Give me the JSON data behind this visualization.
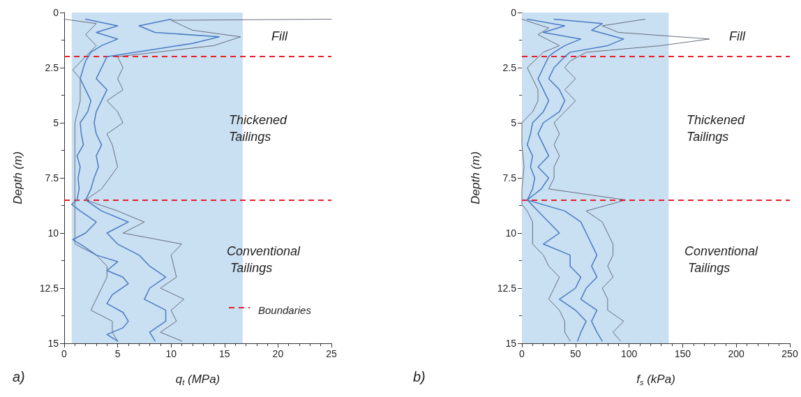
{
  "chart_data": [
    {
      "type": "line",
      "xlabel": "q$_{t}$ (MPa)",
      "ylabel": "Depth (m)",
      "xlim": [
        0,
        25
      ],
      "xticks": [
        0,
        5,
        10,
        15,
        20,
        25
      ],
      "ylim": [
        15,
        0
      ],
      "yticks": [
        0,
        2.5,
        5,
        7.5,
        10,
        12.5,
        15
      ],
      "grid": false,
      "marker": "none",
      "line_style": "solid",
      "legend": "bottom right",
      "annotations": [
        "Fill",
        "Thickened Tailings",
        "Conventional Tailings",
        "a)"
      ],
      "bands": [
        {
          "axis": "x",
          "from": 0.7,
          "to": 16.7,
          "color": "#c9dff2"
        }
      ],
      "ref_lines": [
        {
          "axis": "y",
          "value": 2,
          "label": "Boundaries",
          "color": "#e8202a",
          "line_style": "dashed"
        },
        {
          "axis": "y",
          "value": 8.5,
          "color": "#e8202a",
          "line_style": "dashed"
        }
      ],
      "series": [
        {
          "color": "#5a6270",
          "x": [
            25,
            10,
            12,
            16.5,
            14,
            5,
            5.5,
            5,
            5.5,
            4,
            5,
            5.5,
            4,
            4.5,
            5,
            3.5,
            2,
            5,
            7.5,
            5.5,
            11,
            10,
            10.5,
            9,
            11.2,
            10,
            10.5,
            9,
            11
          ],
          "values": [
            0.3,
            0.35,
            0.8,
            1.1,
            1.5,
            2,
            2.5,
            3,
            3.5,
            4,
            4.5,
            5,
            5.5,
            6,
            7,
            8,
            8.5,
            9,
            9.5,
            10,
            10.5,
            11,
            12,
            12.5,
            13,
            13.5,
            14,
            14.5,
            14.9
          ]
        },
        {
          "color": "#5a6270",
          "x": [
            0,
            3,
            2,
            3,
            2,
            0.8,
            1.5,
            1.5,
            1,
            1,
            1,
            1,
            1,
            1,
            1,
            1,
            3,
            4,
            4,
            3,
            2.5,
            4.5,
            4.5,
            5
          ],
          "values": [
            0.3,
            0.5,
            1,
            1.5,
            2,
            2.6,
            3,
            4,
            5,
            6,
            7,
            8,
            8.7,
            9,
            10,
            10.5,
            11,
            11.5,
            12,
            13,
            13.5,
            14,
            14.5,
            14.9
          ]
        },
        {
          "color": "#4a7cc4",
          "x": [
            2,
            5,
            3,
            5,
            3.5,
            2.5,
            2,
            1.8,
            1.5,
            2,
            2.5,
            2.2,
            1.5,
            1.6,
            1.8,
            1.2,
            1.5,
            1.3,
            1.4,
            1.2,
            0.7,
            1.5,
            3,
            2,
            0.8,
            1.8,
            3,
            5,
            4,
            5.5,
            6,
            4.5,
            4,
            5.5,
            6,
            5.5,
            4,
            5
          ],
          "values": [
            0.3,
            0.6,
            0.9,
            1.2,
            1.5,
            1.8,
            2.2,
            2.5,
            3,
            3.5,
            4,
            4.5,
            5,
            5.5,
            6,
            6.5,
            7,
            7.5,
            8,
            8.5,
            8.7,
            9,
            9.5,
            10,
            10.3,
            10.6,
            11,
            11.3,
            11.7,
            12,
            12.3,
            12.8,
            13.2,
            13.6,
            14,
            14.3,
            14.6,
            14.9
          ]
        },
        {
          "color": "#4a7cc4",
          "x": [
            10,
            7,
            8.5,
            14.5,
            12,
            8,
            4,
            3.5,
            3,
            4,
            3.5,
            3,
            2.8,
            3,
            3.5,
            3,
            3.2,
            2.8,
            2.5,
            2,
            3.5,
            6,
            4,
            5,
            7,
            8,
            9.5,
            8,
            7.5,
            9.5,
            9.5,
            8,
            8.5
          ],
          "values": [
            0.3,
            0.6,
            0.9,
            1.1,
            1.4,
            1.7,
            2,
            2.5,
            3,
            3.5,
            4,
            4.5,
            5,
            5.5,
            6,
            6.5,
            7,
            7.5,
            8,
            8.5,
            9,
            9.5,
            10,
            10.5,
            11,
            11.5,
            12,
            12.5,
            13,
            13.5,
            14,
            14.5,
            14.9
          ]
        }
      ]
    },
    {
      "type": "line",
      "xlabel": "f$_{s}$ (kPa)",
      "ylabel": "Depth (m)",
      "xlim": [
        0,
        250
      ],
      "xticks": [
        0,
        50,
        100,
        150,
        200,
        250
      ],
      "ylim": [
        15,
        0
      ],
      "yticks": [
        0,
        2.5,
        5,
        7.5,
        10,
        12.5,
        15
      ],
      "grid": false,
      "marker": "none",
      "line_style": "solid",
      "annotations": [
        "Fill",
        "Thickened Tailings",
        "Conventional Tailings",
        "b)"
      ],
      "bands": [
        {
          "axis": "x",
          "from": 0,
          "to": 137,
          "color": "#c9dff2"
        }
      ],
      "ref_lines": [
        {
          "axis": "y",
          "value": 2,
          "color": "#e8202a",
          "line_style": "dashed"
        },
        {
          "axis": "y",
          "value": 8.5,
          "color": "#e8202a",
          "line_style": "dashed"
        }
      ],
      "series": [
        {
          "color": "#5a6270",
          "x": [
            115,
            75,
            90,
            175,
            130,
            60,
            45,
            40,
            50,
            40,
            50,
            40,
            30,
            35,
            30,
            35,
            30,
            30,
            25,
            97,
            60,
            75,
            80,
            85,
            85,
            80,
            85,
            75,
            80,
            80,
            95,
            85,
            92
          ],
          "values": [
            0.3,
            0.6,
            0.9,
            1.2,
            1.5,
            1.8,
            2.2,
            2.5,
            3,
            3.5,
            4,
            4.5,
            5,
            5.5,
            6,
            6.5,
            7,
            7.5,
            8,
            8.5,
            9,
            9.5,
            10,
            10.5,
            11,
            11.5,
            12,
            12.5,
            13,
            13.5,
            14,
            14.5,
            14.9
          ]
        },
        {
          "color": "#5a6270",
          "x": [
            0,
            25,
            15,
            35,
            20,
            5,
            10,
            15,
            15,
            10,
            0,
            0,
            2,
            0,
            0,
            5,
            10,
            10,
            10,
            20,
            25,
            35,
            30,
            25,
            35,
            40,
            40,
            45
          ],
          "values": [
            0.3,
            0.7,
            1,
            1.5,
            1.8,
            2.5,
            3,
            3.5,
            4,
            4.5,
            5,
            6,
            7,
            8,
            8.7,
            9,
            9.5,
            10,
            10.5,
            11,
            11.5,
            12,
            12.5,
            13,
            13.5,
            14,
            14.5,
            14.9
          ]
        },
        {
          "color": "#4a7cc4",
          "x": [
            5,
            40,
            20,
            55,
            40,
            30,
            25,
            20,
            15,
            20,
            25,
            20,
            10,
            8,
            5,
            10,
            8,
            12,
            10,
            5,
            15,
            25,
            35,
            20,
            45,
            45,
            55,
            50,
            35,
            50,
            60,
            55,
            52
          ],
          "values": [
            0.3,
            0.6,
            0.9,
            1.2,
            1.5,
            1.8,
            2,
            2.5,
            3,
            3.5,
            4,
            4.5,
            5,
            5.5,
            6,
            6.5,
            7,
            7.5,
            8,
            8.5,
            9,
            9.5,
            10,
            10.5,
            11,
            11.5,
            12,
            12.5,
            13,
            13.5,
            14,
            14.5,
            14.9
          ]
        },
        {
          "color": "#4a7cc4",
          "x": [
            30,
            75,
            65,
            95,
            80,
            45,
            40,
            30,
            25,
            35,
            40,
            35,
            20,
            15,
            20,
            25,
            15,
            25,
            18,
            5,
            40,
            55,
            60,
            65,
            70,
            65,
            70,
            60,
            55,
            70,
            65,
            70,
            75
          ],
          "values": [
            0.3,
            0.5,
            0.8,
            1.2,
            1.5,
            1.8,
            2,
            2.5,
            3,
            3.5,
            4,
            4.5,
            5,
            5.5,
            6,
            6.5,
            7,
            7.5,
            8,
            8.5,
            9,
            9.5,
            10,
            10.5,
            11,
            11.5,
            12,
            12.5,
            13,
            13.5,
            14,
            14.5,
            14.9
          ]
        }
      ]
    }
  ]
}
